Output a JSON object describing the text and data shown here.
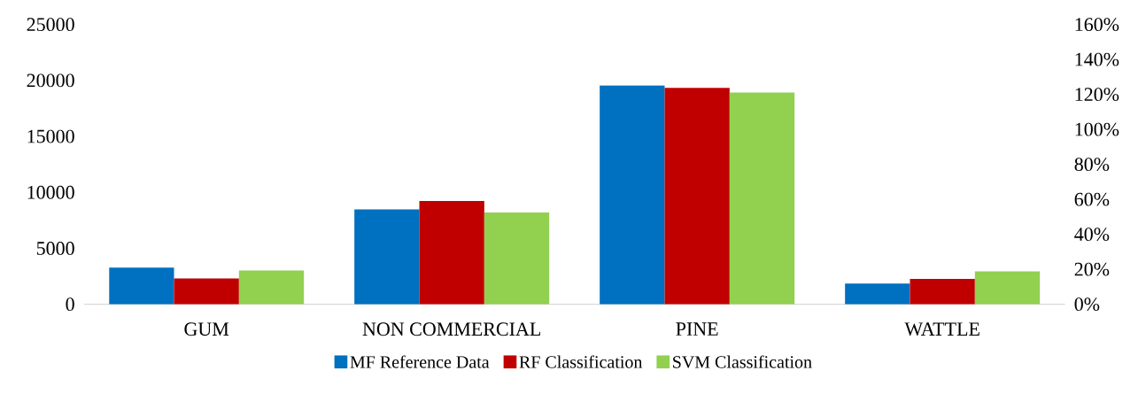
{
  "chart_data": {
    "type": "bar",
    "categories": [
      "GUM",
      "NON COMMERCIAL",
      "PINE",
      "WATTLE"
    ],
    "series": [
      {
        "name": "MF Reference Data",
        "color": "#0070c0",
        "values": [
          3280,
          8470,
          19560,
          1860
        ]
      },
      {
        "name": "RF Classification",
        "color": "#c00000",
        "values": [
          2300,
          9220,
          19330,
          2260
        ]
      },
      {
        "name": "SVM Classification",
        "color": "#92d050",
        "values": [
          3020,
          8210,
          18930,
          2940
        ]
      }
    ],
    "ylim": [
      0,
      25000
    ],
    "yticks": [
      0,
      5000,
      10000,
      15000,
      20000,
      25000
    ],
    "y2lim": [
      0,
      160
    ],
    "y2ticks": [
      {
        "value": 0,
        "label": "0%"
      },
      {
        "value": 20,
        "label": "20%"
      },
      {
        "value": 40,
        "label": "40%"
      },
      {
        "value": 60,
        "label": "60%"
      },
      {
        "value": 80,
        "label": "80%"
      },
      {
        "value": 100,
        "label": "100%"
      },
      {
        "value": 120,
        "label": "120%"
      },
      {
        "value": 140,
        "label": "140%"
      },
      {
        "value": 160,
        "label": "160%"
      }
    ],
    "grid": false,
    "legend": "bottom"
  }
}
